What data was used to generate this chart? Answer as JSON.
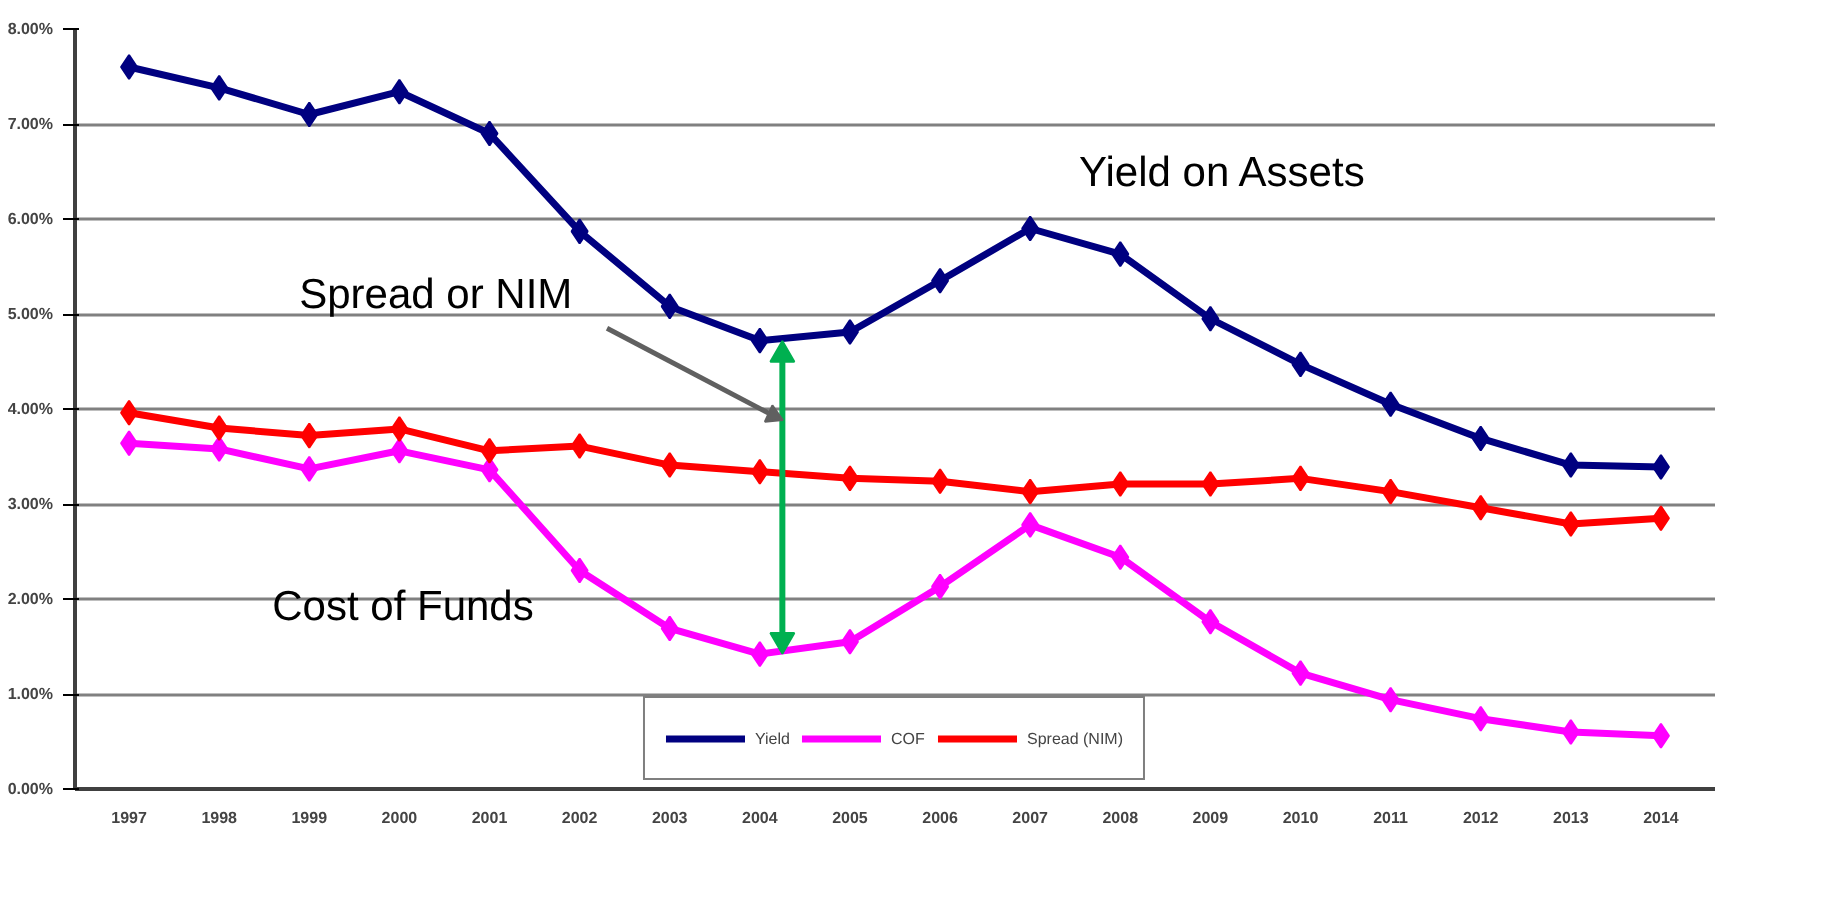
{
  "chart_data": {
    "type": "line",
    "categories": [
      "1997",
      "1998",
      "1999",
      "2000",
      "2001",
      "2002",
      "2003",
      "2004",
      "2005",
      "2006",
      "2007",
      "2008",
      "2009",
      "2010",
      "2011",
      "2012",
      "2013",
      "2014"
    ],
    "series": [
      {
        "name": "Yield",
        "color": "#000080",
        "values": [
          7.6,
          7.38,
          7.1,
          7.34,
          6.9,
          5.87,
          5.08,
          4.72,
          4.81,
          5.35,
          5.9,
          5.63,
          4.95,
          4.47,
          4.05,
          3.69,
          3.41,
          3.39
        ]
      },
      {
        "name": "COF",
        "color": "#ff00ff",
        "values": [
          3.64,
          3.58,
          3.37,
          3.56,
          3.36,
          2.3,
          1.69,
          1.42,
          1.55,
          2.13,
          2.78,
          2.44,
          1.76,
          1.22,
          0.94,
          0.74,
          0.6,
          0.56
        ]
      },
      {
        "name": "Spread (NIM)",
        "color": "#ff0000",
        "values": [
          3.96,
          3.8,
          3.72,
          3.79,
          3.56,
          3.61,
          3.41,
          3.34,
          3.27,
          3.24,
          3.13,
          3.21,
          3.21,
          3.27,
          3.13,
          2.96,
          2.79,
          2.85
        ]
      }
    ],
    "ylim": [
      0,
      8
    ],
    "yticks": [
      {
        "value": 0,
        "label": "0.00%"
      },
      {
        "value": 1,
        "label": "1.00%"
      },
      {
        "value": 2,
        "label": "2.00%"
      },
      {
        "value": 3,
        "label": "3.00%"
      },
      {
        "value": 4,
        "label": "4.00%"
      },
      {
        "value": 5,
        "label": "5.00%"
      },
      {
        "value": 6,
        "label": "6.00%"
      },
      {
        "value": 7,
        "label": "7.00%"
      },
      {
        "value": 8,
        "label": "8.00%"
      }
    ],
    "annotations": [
      "Yield on Assets",
      "Spread or NIM",
      "Cost of Funds"
    ],
    "grid": "y",
    "legend": "bottom",
    "marker": "diamond",
    "line_style": "solid"
  }
}
